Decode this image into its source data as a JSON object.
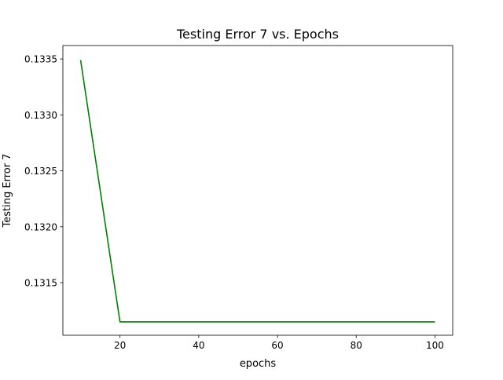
{
  "chart_data": {
    "type": "line",
    "title": "Testing Error 7 vs. Epochs",
    "xlabel": "epochs",
    "ylabel": "Testing Error 7",
    "xlim": [
      5.5,
      104.5
    ],
    "ylim": [
      0.13103,
      0.13362
    ],
    "grid": false,
    "legend": "none",
    "xticks": [
      20,
      40,
      60,
      80,
      100
    ],
    "xtick_labels": [
      "20",
      "40",
      "60",
      "80",
      "100"
    ],
    "yticks": [
      0.1315,
      0.132,
      0.1325,
      0.133,
      0.1335
    ],
    "ytick_labels": [
      "0.1315",
      "0.1320",
      "0.1325",
      "0.1330",
      "0.1335"
    ],
    "series": [
      {
        "color": "#008000",
        "x": [
          10,
          20,
          30,
          40,
          50,
          60,
          70,
          80,
          90,
          100
        ],
        "y": [
          0.13349,
          0.13115,
          0.13115,
          0.13115,
          0.13115,
          0.13115,
          0.13115,
          0.13115,
          0.13115,
          0.13115
        ]
      }
    ]
  }
}
